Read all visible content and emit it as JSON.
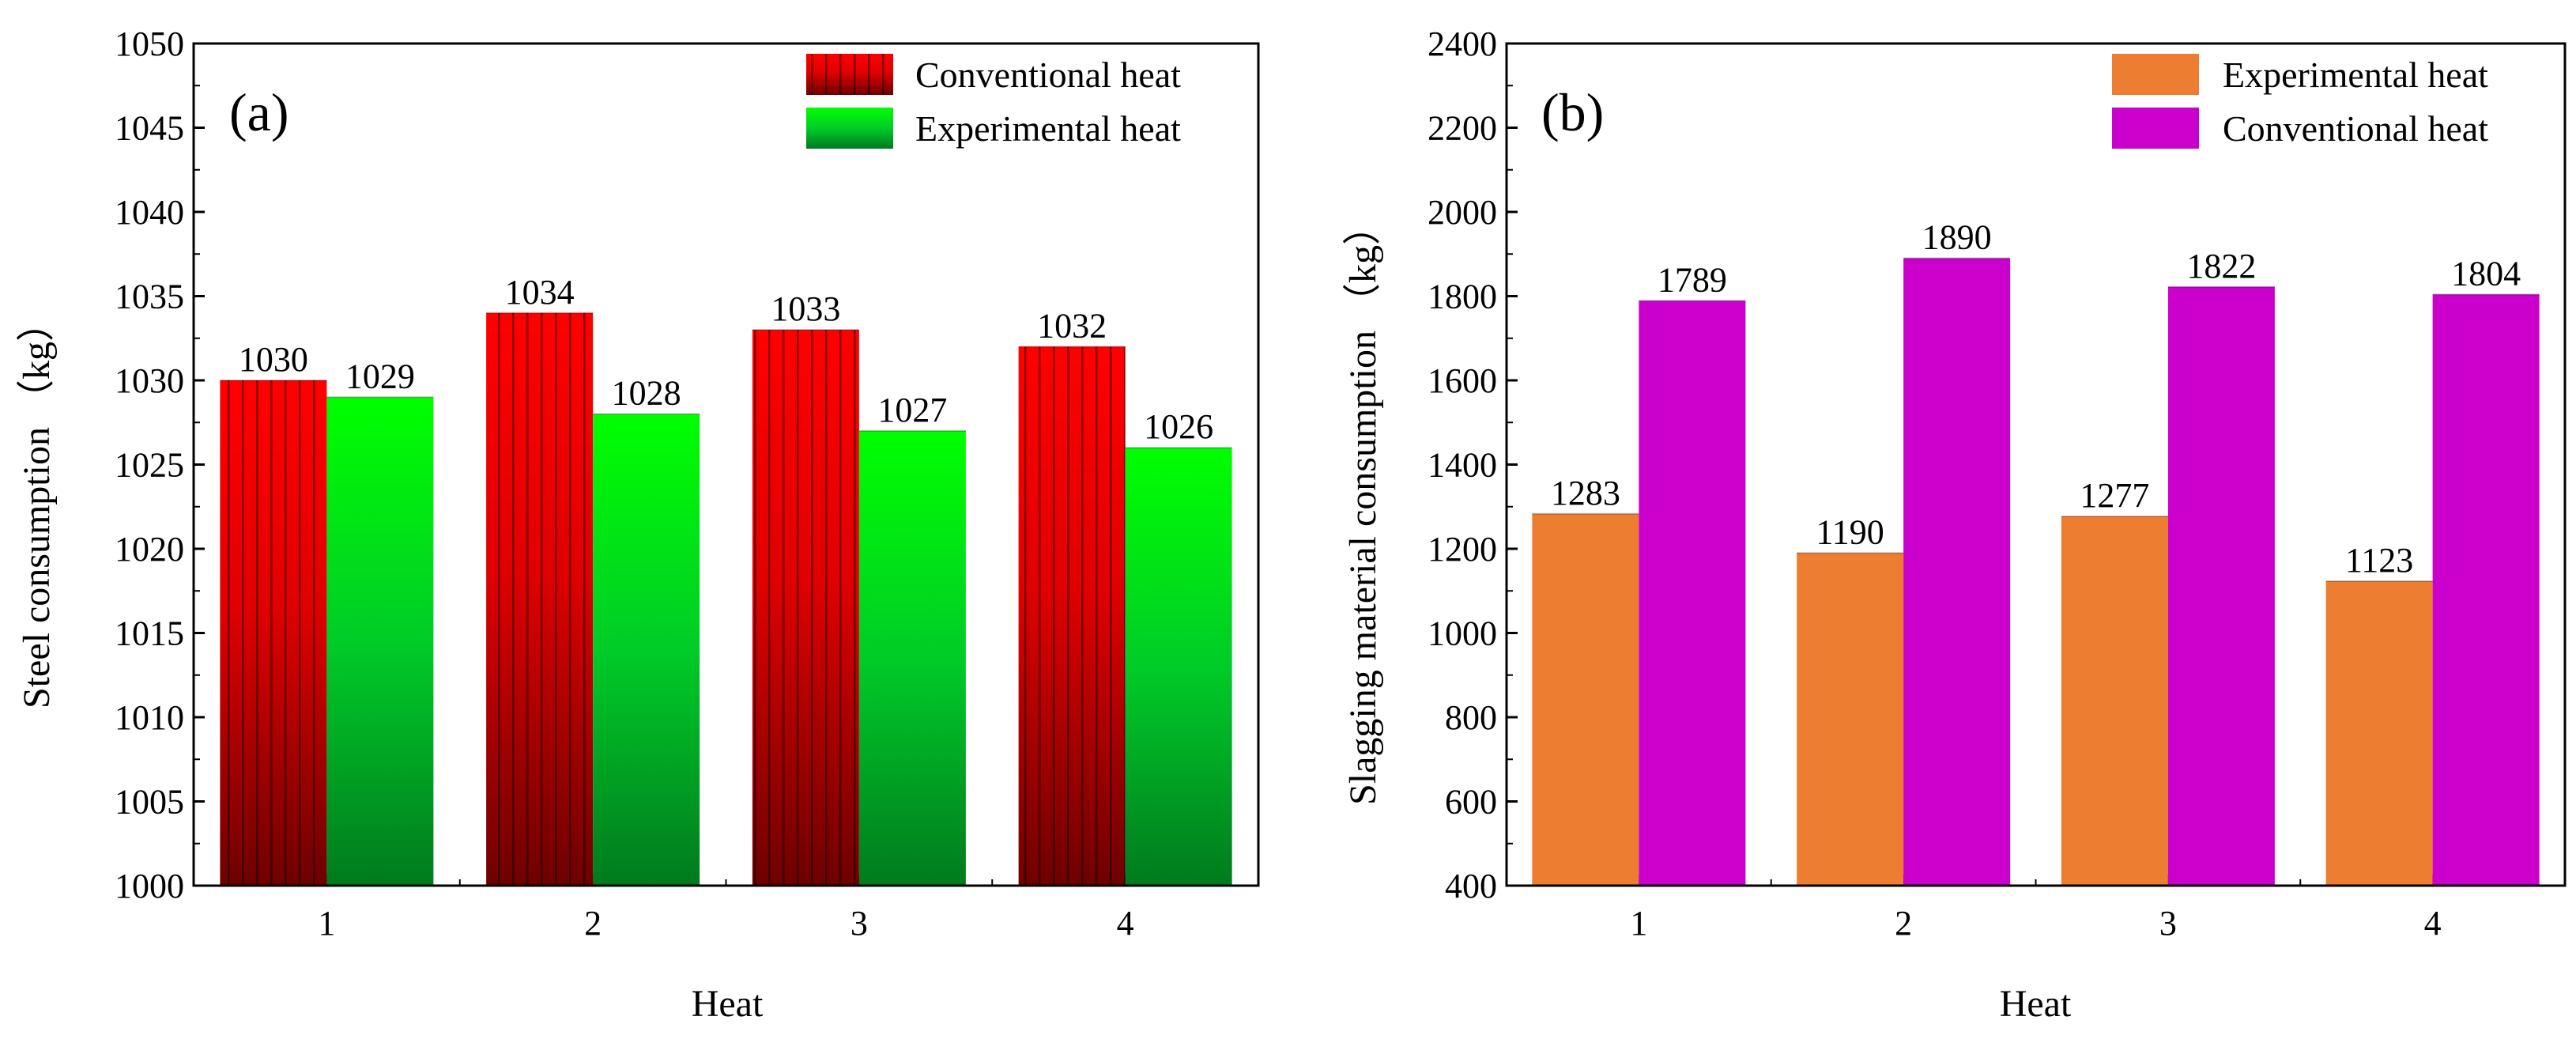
{
  "chart_data": [
    {
      "type": "bar",
      "panel_label": "(a)",
      "categories": [
        "1",
        "2",
        "3",
        "4"
      ],
      "series": [
        {
          "name": "Conventional heat",
          "values": [
            1030,
            1034,
            1033,
            1032
          ],
          "color": "#ff0000",
          "color_dark": "#7a0000",
          "style": "striped-gradient"
        },
        {
          "name": "Experimental heat",
          "values": [
            1029,
            1028,
            1027,
            1026
          ],
          "color": "#00ff00",
          "color_dark": "#007a1e",
          "style": "gradient"
        }
      ],
      "value_labels": [
        [
          "1030",
          "1034",
          "1033",
          "1032"
        ],
        [
          "1029",
          "1028",
          "1027",
          "1026"
        ]
      ],
      "xlabel": "Heat",
      "ylabel": "Steel consumption （kg）",
      "ylim": [
        1000,
        1050
      ],
      "yticks": [
        1000,
        1005,
        1010,
        1015,
        1020,
        1025,
        1030,
        1035,
        1040,
        1045,
        1050
      ],
      "legend_position": "top-right"
    },
    {
      "type": "bar",
      "panel_label": "(b)",
      "categories": [
        "1",
        "2",
        "3",
        "4"
      ],
      "series": [
        {
          "name": "Experimental heat",
          "values": [
            1283,
            1190,
            1277,
            1123
          ],
          "color": "#ed7d31"
        },
        {
          "name": "Conventional heat",
          "values": [
            1789,
            1890,
            1822,
            1804
          ],
          "color": "#cc00cc"
        }
      ],
      "value_labels": [
        [
          "1283",
          "1190",
          "1277",
          "1123"
        ],
        [
          "1789",
          "1890",
          "1822",
          "1804"
        ]
      ],
      "xlabel": "Heat",
      "ylabel": "Slagging material consumption （kg）",
      "ylim": [
        400,
        2400
      ],
      "yticks": [
        400,
        600,
        800,
        1000,
        1200,
        1400,
        1600,
        1800,
        2000,
        2200,
        2400
      ],
      "legend_position": "top-right"
    }
  ]
}
